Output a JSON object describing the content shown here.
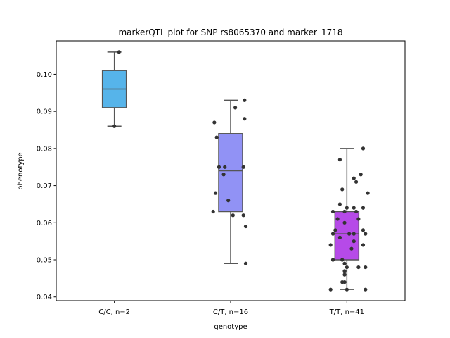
{
  "chart_data": {
    "type": "box",
    "title": "markerQTL plot for SNP rs8065370 and marker_1718",
    "xlabel": "genotype",
    "ylabel": "phenotype",
    "ylim": [
      0.039,
      0.109
    ],
    "yticks": [
      "0.04",
      "0.05",
      "0.06",
      "0.07",
      "0.08",
      "0.09",
      "0.10"
    ],
    "grid": false,
    "categories": [
      "C/C, n=2",
      "C/T, n=16",
      "T/T, n=41"
    ],
    "colors": [
      "#56b4ea",
      "#9192f5",
      "#b64ae8"
    ],
    "point_color": "#333333",
    "boxes": [
      {
        "q1": 0.091,
        "median": 0.096,
        "q3": 0.101,
        "whisker_low": 0.086,
        "whisker_high": 0.106
      },
      {
        "q1": 0.063,
        "median": 0.074,
        "q3": 0.084,
        "whisker_low": 0.049,
        "whisker_high": 0.093
      },
      {
        "q1": 0.05,
        "median": 0.057,
        "q3": 0.063,
        "whisker_low": 0.042,
        "whisker_high": 0.08
      }
    ],
    "points": [
      [
        {
          "x": 0.04,
          "y": 0.106
        },
        {
          "x": 0.0,
          "y": 0.086
        }
      ],
      [
        {
          "x": 0.12,
          "y": 0.093
        },
        {
          "x": 0.04,
          "y": 0.091
        },
        {
          "x": 0.12,
          "y": 0.088
        },
        {
          "x": -0.14,
          "y": 0.087
        },
        {
          "x": -0.12,
          "y": 0.083
        },
        {
          "x": -0.1,
          "y": 0.075
        },
        {
          "x": -0.05,
          "y": 0.075
        },
        {
          "x": 0.11,
          "y": 0.075
        },
        {
          "x": -0.06,
          "y": 0.073
        },
        {
          "x": -0.13,
          "y": 0.068
        },
        {
          "x": -0.02,
          "y": 0.066
        },
        {
          "x": -0.15,
          "y": 0.063
        },
        {
          "x": 0.02,
          "y": 0.062
        },
        {
          "x": 0.11,
          "y": 0.062
        },
        {
          "x": 0.13,
          "y": 0.059
        },
        {
          "x": 0.13,
          "y": 0.049
        }
      ],
      [
        {
          "x": 0.14,
          "y": 0.08
        },
        {
          "x": -0.06,
          "y": 0.077
        },
        {
          "x": 0.12,
          "y": 0.073
        },
        {
          "x": 0.06,
          "y": 0.072
        },
        {
          "x": 0.08,
          "y": 0.071
        },
        {
          "x": -0.04,
          "y": 0.069
        },
        {
          "x": 0.18,
          "y": 0.068
        },
        {
          "x": -0.06,
          "y": 0.065
        },
        {
          "x": 0.0,
          "y": 0.064
        },
        {
          "x": 0.06,
          "y": 0.064
        },
        {
          "x": 0.14,
          "y": 0.064
        },
        {
          "x": -0.12,
          "y": 0.063
        },
        {
          "x": -0.02,
          "y": 0.063
        },
        {
          "x": 0.08,
          "y": 0.063
        },
        {
          "x": -0.08,
          "y": 0.061
        },
        {
          "x": 0.1,
          "y": 0.061
        },
        {
          "x": -0.02,
          "y": 0.06
        },
        {
          "x": -0.1,
          "y": 0.058
        },
        {
          "x": 0.14,
          "y": 0.058
        },
        {
          "x": -0.12,
          "y": 0.057
        },
        {
          "x": 0.02,
          "y": 0.057
        },
        {
          "x": 0.06,
          "y": 0.057
        },
        {
          "x": 0.16,
          "y": 0.057
        },
        {
          "x": -0.06,
          "y": 0.056
        },
        {
          "x": 0.06,
          "y": 0.055
        },
        {
          "x": -0.14,
          "y": 0.054
        },
        {
          "x": 0.14,
          "y": 0.054
        },
        {
          "x": 0.04,
          "y": 0.053
        },
        {
          "x": -0.12,
          "y": 0.05
        },
        {
          "x": -0.04,
          "y": 0.05
        },
        {
          "x": -0.02,
          "y": 0.049
        },
        {
          "x": 0.0,
          "y": 0.048
        },
        {
          "x": 0.1,
          "y": 0.048
        },
        {
          "x": 0.16,
          "y": 0.048
        },
        {
          "x": -0.02,
          "y": 0.047
        },
        {
          "x": -0.02,
          "y": 0.046
        },
        {
          "x": -0.04,
          "y": 0.044
        },
        {
          "x": -0.02,
          "y": 0.044
        },
        {
          "x": -0.14,
          "y": 0.042
        },
        {
          "x": 0.0,
          "y": 0.042
        },
        {
          "x": 0.16,
          "y": 0.042
        }
      ]
    ]
  }
}
